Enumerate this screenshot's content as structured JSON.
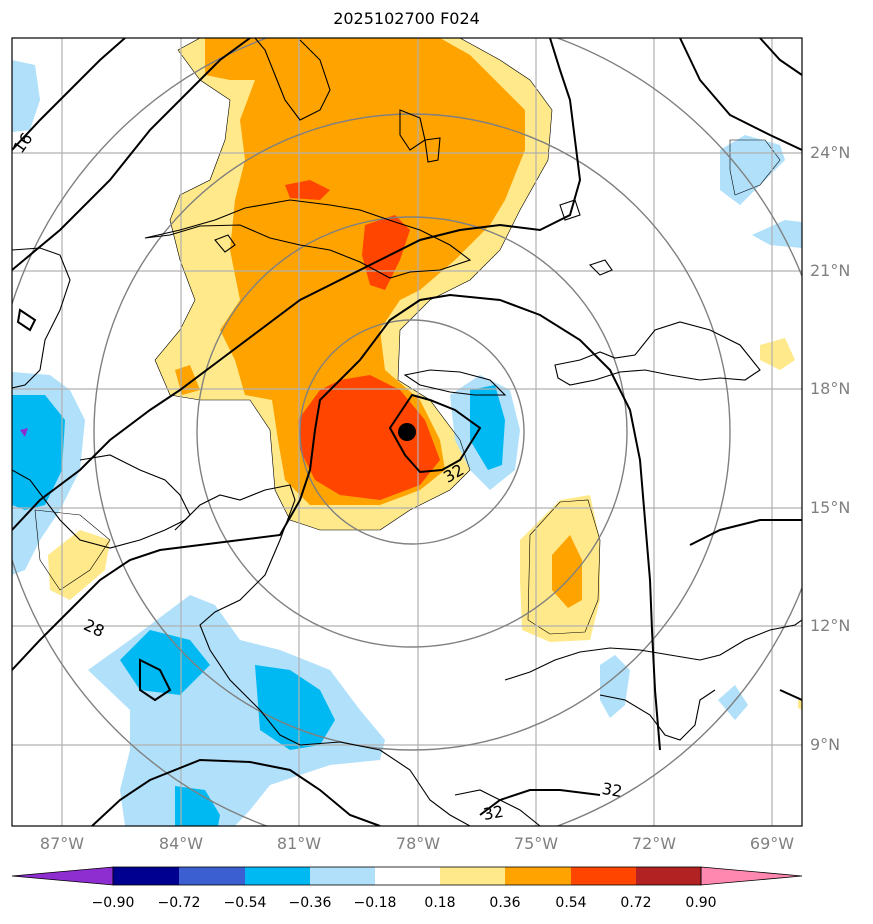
{
  "title": "2025102700 F024",
  "map": {
    "lon_range": [
      -88,
      -68
    ],
    "lat_range": [
      7,
      27
    ],
    "lat_ticks": [
      "24°N",
      "21°N",
      "18°N",
      "15°N",
      "12°N",
      "9°N"
    ],
    "lat_values": [
      24,
      21,
      18,
      15,
      12,
      9
    ],
    "lon_ticks": [
      "87°W",
      "84°W",
      "81°W",
      "78°W",
      "75°W",
      "72°W",
      "69°W"
    ],
    "lon_values": [
      -87,
      -84,
      -81,
      -78,
      -75,
      -72,
      -69
    ],
    "storm_center": {
      "lon": -77.7,
      "lat": 16.9
    },
    "contour_labels": [
      "16",
      "28",
      "32",
      "32",
      "32"
    ],
    "grid": true
  },
  "colorbar": {
    "labels": [
      "−0.90",
      "−0.72",
      "−0.54",
      "−0.36",
      "−0.18",
      "0.18",
      "0.36",
      "0.54",
      "0.72",
      "0.90"
    ],
    "colors": [
      "#8e2ed0",
      "#000090",
      "#3b5fd1",
      "#00b9f2",
      "#b0e0fa",
      "#ffffff",
      "#ffe98a",
      "#ffa300",
      "#ff4500",
      "#b22222",
      "#ff88b0"
    ]
  },
  "colors": {
    "light_blue": "#b0e0fa",
    "cyan": "#00b9f2",
    "purple": "#8e2ed0",
    "light_yellow": "#ffe98a",
    "orange": "#ffa300",
    "red_orange": "#ff4500"
  }
}
